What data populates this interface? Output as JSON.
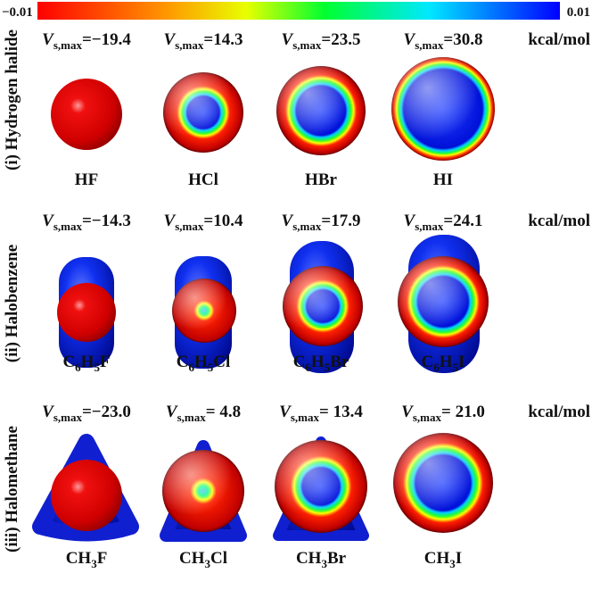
{
  "colorbar": {
    "min_label": "−0.01",
    "max_label": "0.01"
  },
  "rows": [
    {
      "group": "(i) Hydrogen halide",
      "unit": "kcal/mol",
      "items": [
        {
          "vs": {
            "symbol": "V",
            "sub": "s,max",
            "value": "=−19.4"
          },
          "formula": [
            {
              "t": "HF"
            }
          ]
        },
        {
          "vs": {
            "symbol": "V",
            "sub": "s,max",
            "value": "=14.3"
          },
          "formula": [
            {
              "t": "HCl"
            }
          ]
        },
        {
          "vs": {
            "symbol": "V",
            "sub": "s,max",
            "value": "=23.5"
          },
          "formula": [
            {
              "t": "HBr"
            }
          ]
        },
        {
          "vs": {
            "symbol": "V",
            "sub": "s,max",
            "value": "=30.8"
          },
          "formula": [
            {
              "t": "HI"
            }
          ]
        }
      ]
    },
    {
      "group": "(ii) Halobenzene",
      "unit": "kcal/mol",
      "items": [
        {
          "vs": {
            "symbol": "V",
            "sub": "s,max",
            "value": "=−14.3"
          },
          "formula": [
            {
              "t": "C"
            },
            {
              "sub": "6"
            },
            {
              "t": "H"
            },
            {
              "sub": "5"
            },
            {
              "t": "F"
            }
          ]
        },
        {
          "vs": {
            "symbol": "V",
            "sub": "s,max",
            "value": "=10.4"
          },
          "formula": [
            {
              "t": "C"
            },
            {
              "sub": "6"
            },
            {
              "t": "H"
            },
            {
              "sub": "5"
            },
            {
              "t": "Cl"
            }
          ]
        },
        {
          "vs": {
            "symbol": "V",
            "sub": "s,max",
            "value": "=17.9"
          },
          "formula": [
            {
              "t": "C"
            },
            {
              "sub": "6"
            },
            {
              "t": "H"
            },
            {
              "sub": "5"
            },
            {
              "t": "Br"
            }
          ]
        },
        {
          "vs": {
            "symbol": "V",
            "sub": "s,max",
            "value": "=24.1"
          },
          "formula": [
            {
              "t": "C"
            },
            {
              "sub": "6"
            },
            {
              "t": "H"
            },
            {
              "sub": "5"
            },
            {
              "t": "I"
            }
          ]
        }
      ]
    },
    {
      "group": "(iii) Halomethane",
      "unit": "kcal/mol",
      "items": [
        {
          "vs": {
            "symbol": "V",
            "sub": "s,max",
            "value": "=−23.0"
          },
          "formula": [
            {
              "t": "CH"
            },
            {
              "sub": "3"
            },
            {
              "t": "F"
            }
          ]
        },
        {
          "vs": {
            "symbol": "V",
            "sub": "s,max",
            "value": "= 4.8"
          },
          "formula": [
            {
              "t": "CH"
            },
            {
              "sub": "3"
            },
            {
              "t": "Cl"
            }
          ]
        },
        {
          "vs": {
            "symbol": "V",
            "sub": "s,max",
            "value": "= 13.4"
          },
          "formula": [
            {
              "t": "CH"
            },
            {
              "sub": "3"
            },
            {
              "t": "Br"
            }
          ]
        },
        {
          "vs": {
            "symbol": "V",
            "sub": "s,max",
            "value": "= 21.0"
          },
          "formula": [
            {
              "t": "CH"
            },
            {
              "sub": "3"
            },
            {
              "t": "I"
            }
          ]
        }
      ]
    }
  ]
}
